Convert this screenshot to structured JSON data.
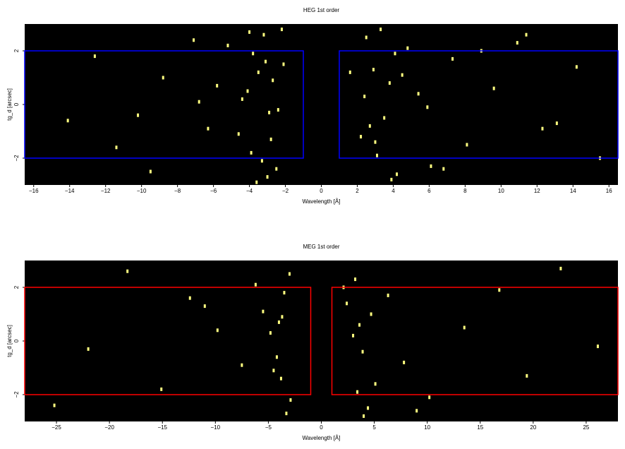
{
  "chart_data": [
    {
      "type": "scatter",
      "title": "HEG 1st order",
      "xlabel": "Wavelength [Å]",
      "ylabel": "tg_d [arcsec]",
      "xlim": [
        -16.5,
        16.5
      ],
      "ylim": [
        -3,
        3
      ],
      "xticks": [
        {
          "value": -16,
          "label": "−16"
        },
        {
          "value": -14,
          "label": "−14"
        },
        {
          "value": -12,
          "label": "−12"
        },
        {
          "value": -10,
          "label": "−10"
        },
        {
          "value": -8,
          "label": "−8"
        },
        {
          "value": -6,
          "label": "−6"
        },
        {
          "value": -4,
          "label": "−4"
        },
        {
          "value": -2,
          "label": "−2"
        },
        0,
        2,
        4,
        6,
        8,
        10,
        12,
        14,
        16
      ],
      "yticks": [
        {
          "value": -2,
          "label": "−2"
        },
        0,
        2
      ],
      "background": "#000000",
      "color": "#ffff80",
      "x": [
        -3.2,
        -3.8,
        -2.5,
        -4.1,
        -2.9,
        -3.5,
        -2.2,
        -4.6,
        -3.0,
        -2.7,
        -3.9,
        -5.2,
        -6.3,
        -2.1,
        -3.3,
        -4.4,
        -7.1,
        -8.8,
        -10.2,
        -11.4,
        -12.6,
        -14.1,
        -9.5,
        -5.8,
        -3.6,
        -2.4,
        -3.1,
        -4.0,
        -2.8,
        -6.8,
        2.5,
        3.1,
        3.8,
        4.2,
        2.9,
        3.5,
        4.8,
        2.2,
        5.4,
        6.1,
        3.3,
        4.5,
        2.7,
        7.3,
        8.1,
        9.6,
        10.9,
        12.3,
        14.2,
        15.5,
        3.9,
        2.4,
        4.1,
        5.9,
        3.0,
        6.8,
        11.4,
        13.1,
        1.6,
        8.9
      ],
      "y": [
        2.6,
        1.9,
        -2.4,
        0.5,
        -0.3,
        1.2,
        2.8,
        -1.1,
        -2.7,
        0.9,
        -1.8,
        2.2,
        -0.9,
        1.5,
        -2.1,
        0.2,
        2.4,
        1.0,
        -0.4,
        -1.6,
        1.8,
        -0.6,
        -2.5,
        0.7,
        -2.9,
        -0.2,
        1.6,
        2.7,
        -1.3,
        0.1,
        2.5,
        -1.9,
        0.8,
        -2.6,
        1.3,
        -0.5,
        2.1,
        -1.2,
        0.4,
        -2.3,
        2.8,
        1.1,
        -0.8,
        1.7,
        -1.5,
        0.6,
        2.3,
        -0.9,
        1.4,
        -2.0,
        -2.8,
        0.3,
        1.9,
        -0.1,
        -1.4,
        -2.4,
        2.6,
        -0.7,
        1.2,
        2.0
      ],
      "regions": [
        {
          "xlim": [
            -16.5,
            -1
          ],
          "ylim": [
            -2,
            2
          ],
          "color": "#0000ff"
        },
        {
          "xlim": [
            1,
            16.5
          ],
          "ylim": [
            -2,
            2
          ],
          "color": "#0000ff"
        }
      ]
    },
    {
      "type": "scatter",
      "title": "MEG 1st order",
      "xlabel": "Wavelength [Å]",
      "ylabel": "tg_d [arcsec]",
      "xlim": [
        -28,
        28
      ],
      "ylim": [
        -3,
        3
      ],
      "xticks": [
        {
          "value": -25,
          "label": "−25"
        },
        {
          "value": -20,
          "label": "−20"
        },
        {
          "value": -15,
          "label": "−15"
        },
        {
          "value": -10,
          "label": "−10"
        },
        {
          "value": -5,
          "label": "−5"
        },
        0,
        5,
        10,
        15,
        20,
        25
      ],
      "yticks": [
        {
          "value": -2,
          "label": "−2"
        },
        0,
        2
      ],
      "background": "#000000",
      "color": "#ffff80",
      "x": [
        -3.5,
        -4.2,
        -3.0,
        -4.8,
        -3.8,
        -5.5,
        -2.9,
        -4.0,
        -3.3,
        -6.2,
        -7.5,
        -9.8,
        -12.4,
        -15.1,
        -18.3,
        -22.0,
        -25.2,
        -11.0,
        -4.5,
        -3.7,
        3.2,
        3.9,
        2.4,
        4.4,
        3.6,
        5.1,
        2.1,
        4.0,
        3.0,
        6.3,
        7.8,
        10.2,
        13.5,
        16.8,
        19.4,
        22.6,
        26.1,
        9.0,
        4.7,
        3.4
      ],
      "y": [
        1.8,
        -0.6,
        2.5,
        0.3,
        -1.4,
        1.1,
        -2.2,
        0.7,
        -2.7,
        2.1,
        -0.9,
        0.4,
        1.6,
        -1.8,
        2.6,
        -0.3,
        -2.4,
        1.3,
        -1.1,
        0.9,
        2.3,
        -0.4,
        1.4,
        -2.5,
        0.6,
        -1.6,
        2.0,
        -2.8,
        0.2,
        1.7,
        -0.8,
        -2.1,
        0.5,
        1.9,
        -1.3,
        2.7,
        -0.2,
        -2.6,
        1.0,
        -1.9
      ],
      "regions": [
        {
          "xlim": [
            -28,
            -1
          ],
          "ylim": [
            -2,
            2
          ],
          "color": "#ff0000"
        },
        {
          "xlim": [
            1,
            28
          ],
          "ylim": [
            -2,
            2
          ],
          "color": "#ff0000"
        }
      ]
    }
  ]
}
